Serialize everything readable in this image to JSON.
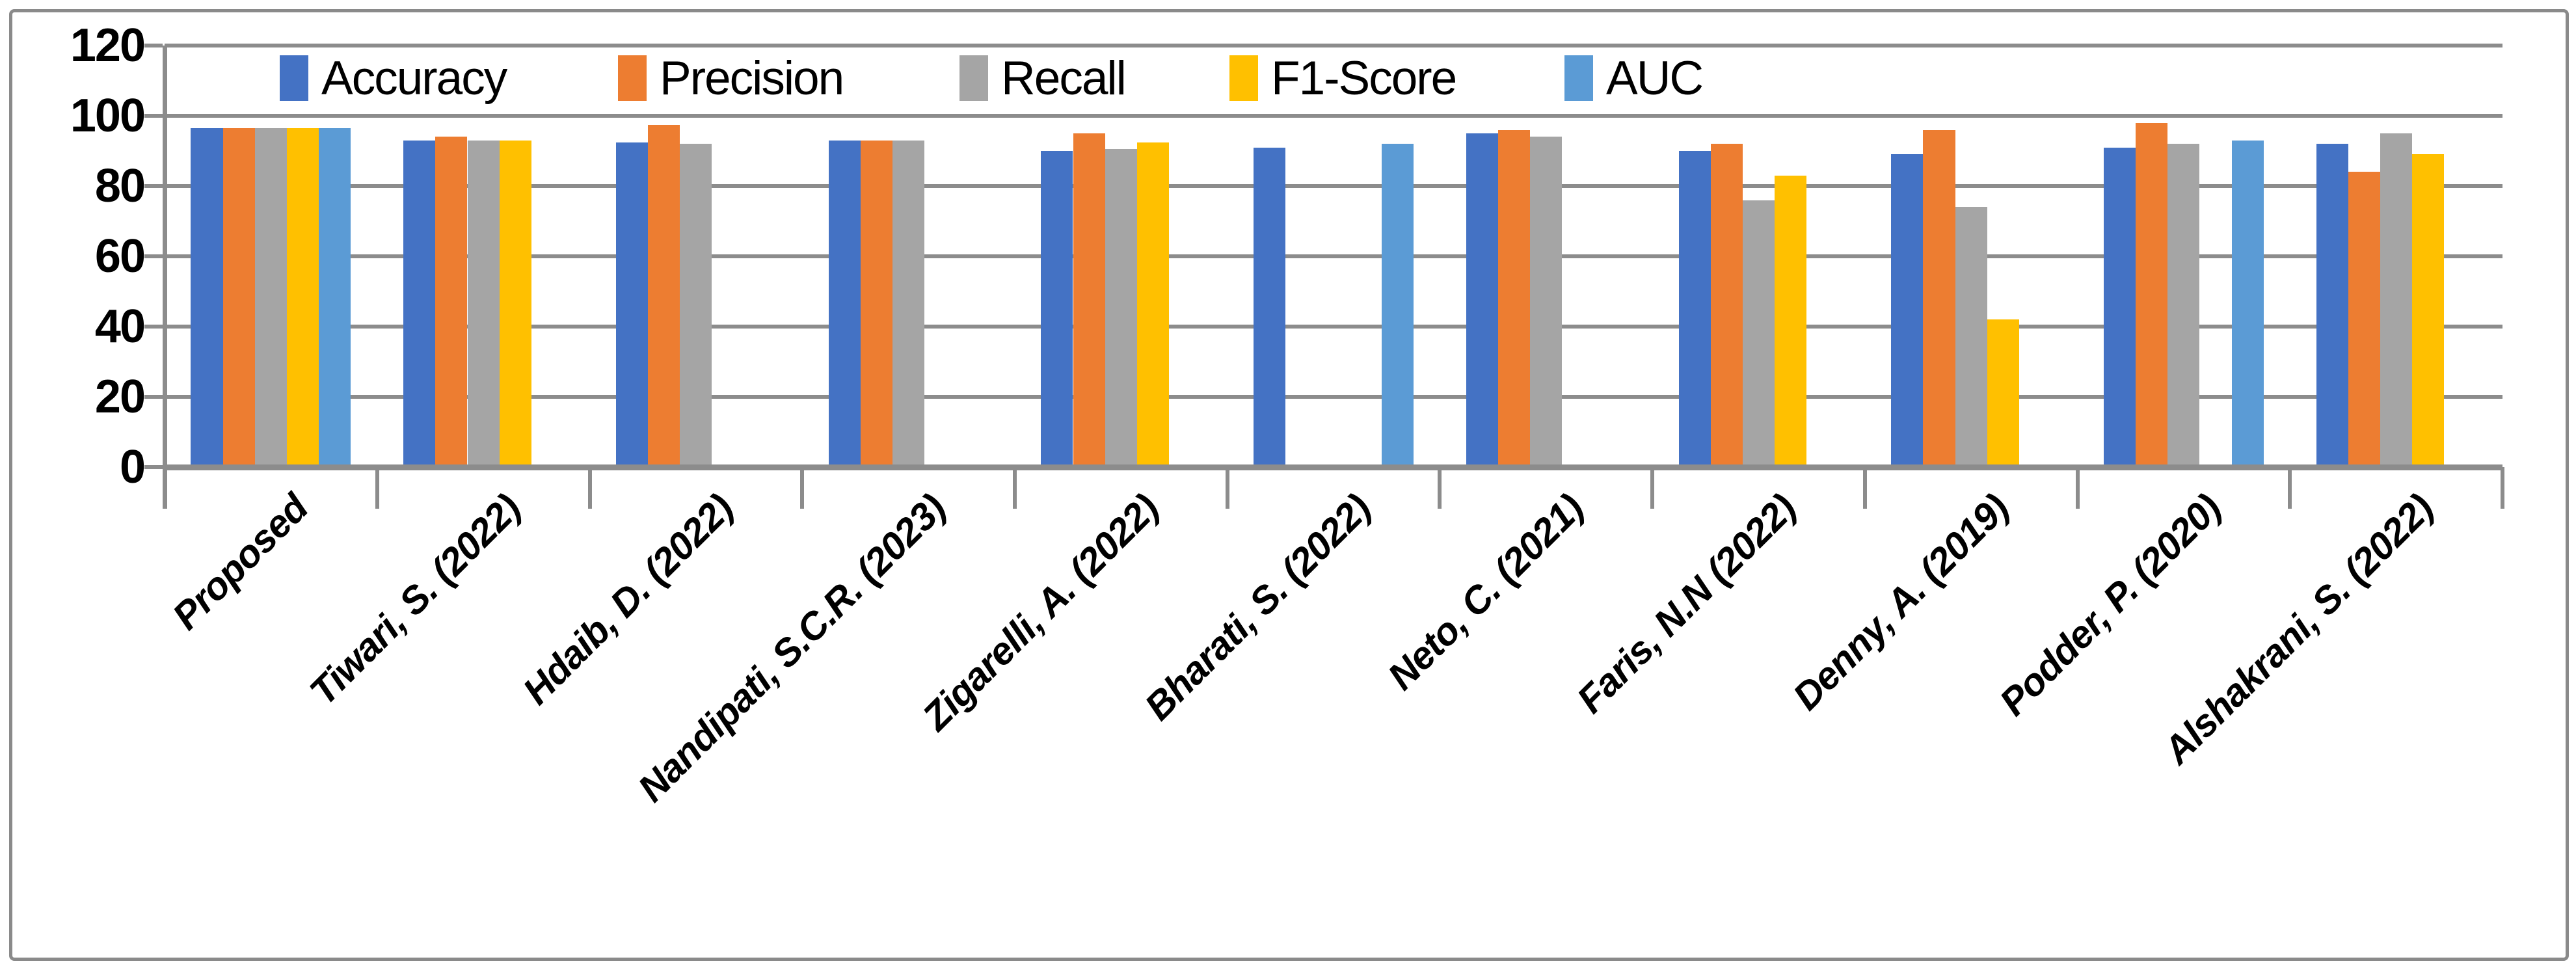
{
  "figure": {
    "background": "#FFFFFF",
    "border_color": "#8A8A8A",
    "gridline_color": "#8C8C8C",
    "axis_color": "#8C8C8C"
  },
  "legend": {
    "items": [
      {
        "label": "Accuracy",
        "swatch_color": "#4472C4"
      },
      {
        "label": "Precision",
        "swatch_color": "#ED7D31"
      },
      {
        "label": "Recall",
        "swatch_color": "#A5A5A5"
      },
      {
        "label": "F1-Score",
        "swatch_color": "#FFC000"
      },
      {
        "label": "AUC",
        "swatch_color": "#5B9BD5"
      }
    ]
  },
  "chart_data": {
    "type": "bar",
    "title": "",
    "xlabel": "",
    "ylabel": "",
    "ylim": [
      0,
      120
    ],
    "y_ticks": [
      0,
      20,
      40,
      60,
      80,
      100,
      120
    ],
    "grid": true,
    "legend_position": "top",
    "categories": [
      "Proposed",
      "Tiwari, S. (2022)",
      "Hdaib, D. (2022)",
      "Nandipati, S.C.R. (2023)",
      "Zigarelli, A. (2022)",
      "Bharati, S. (2022)",
      "Neto, C. (2021)",
      "Faris, N.N (2022)",
      "Denny, A. (2019)",
      "Podder, P. (2020)",
      "Alshakrani, S. (2022)"
    ],
    "series": [
      {
        "name": "Accuracy",
        "color": "#4472C4",
        "values": [
          96.5,
          93,
          92.5,
          93,
          90,
          91,
          95,
          90,
          89,
          91,
          92
        ]
      },
      {
        "name": "Precision",
        "color": "#ED7D31",
        "values": [
          96.5,
          94,
          97.5,
          93,
          95,
          null,
          96,
          92,
          96,
          98,
          84
        ]
      },
      {
        "name": "Recall",
        "color": "#A5A5A5",
        "values": [
          96.5,
          93,
          92,
          93,
          90.5,
          null,
          94,
          76,
          74,
          92,
          95
        ]
      },
      {
        "name": "F1-Score",
        "color": "#FFC000",
        "values": [
          96.5,
          93,
          null,
          null,
          92.5,
          null,
          null,
          83,
          42,
          null,
          89
        ]
      },
      {
        "name": "AUC",
        "color": "#5B9BD5",
        "values": [
          96.5,
          null,
          null,
          null,
          null,
          92,
          null,
          null,
          null,
          93,
          null
        ]
      }
    ]
  }
}
